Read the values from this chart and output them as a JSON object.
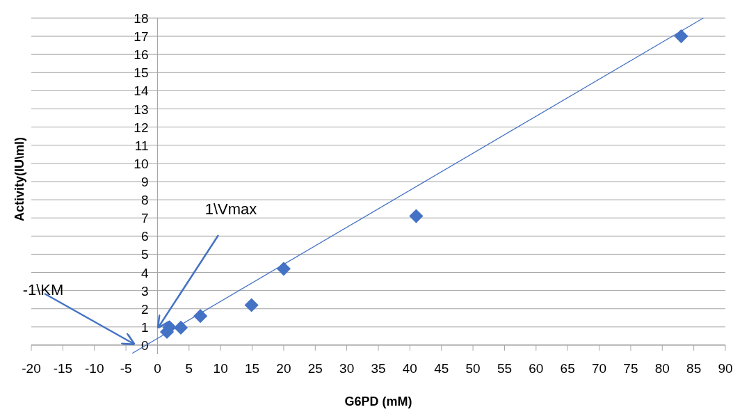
{
  "chart_data": {
    "type": "scatter",
    "xlabel": "G6PD (mM)",
    "ylabel": "Activity(IU\\ml)",
    "xlim": [
      -20,
      90
    ],
    "xticks": [
      -20,
      -15,
      -10,
      -5,
      0,
      5,
      10,
      15,
      20,
      25,
      30,
      35,
      40,
      45,
      50,
      55,
      60,
      65,
      70,
      75,
      80,
      85,
      90
    ],
    "ylim": [
      -0.5,
      18
    ],
    "yticks": [
      0,
      1,
      2,
      3,
      4,
      5,
      6,
      7,
      8,
      9,
      10,
      11,
      12,
      13,
      14,
      15,
      16,
      17,
      18
    ],
    "grid": "y",
    "legend": false,
    "series": [
      {
        "marker": "diamond",
        "color": "#4472c4",
        "x": [
          1.5,
          1.9,
          3.7,
          6.8,
          14.9,
          20,
          41,
          83
        ],
        "values": [
          0.73,
          0.98,
          0.96,
          1.6,
          2.2,
          4.2,
          7.1,
          17
        ]
      },
      {
        "type": "line",
        "marker": "none",
        "color": "#4472c4",
        "x": [
          -4,
          86.5
        ],
        "values": [
          -0.45,
          18
        ]
      }
    ],
    "annotations": [
      "1\\Vmax",
      "-1\\KM"
    ]
  }
}
